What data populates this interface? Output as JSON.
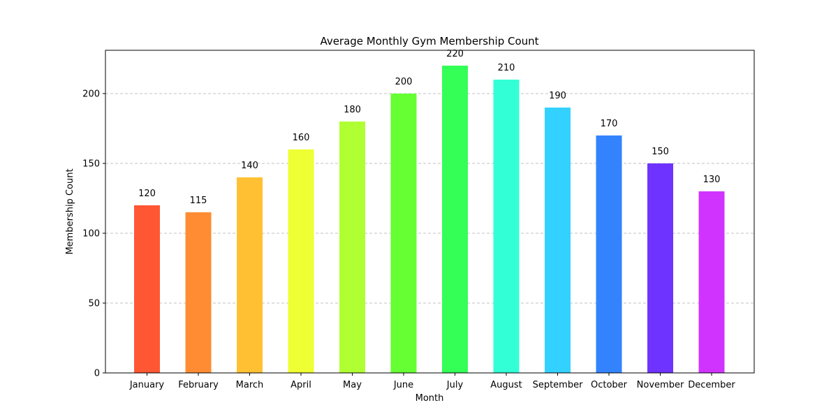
{
  "chart_data": {
    "type": "bar",
    "title": "Average Monthly Gym Membership Count",
    "xlabel": "Month",
    "ylabel": "Membership Count",
    "categories": [
      "January",
      "February",
      "March",
      "April",
      "May",
      "June",
      "July",
      "August",
      "September",
      "October",
      "November",
      "December"
    ],
    "values": [
      120,
      115,
      140,
      160,
      180,
      200,
      220,
      210,
      190,
      170,
      150,
      130
    ],
    "colors": [
      "#ff5733",
      "#ff8c33",
      "#ffc133",
      "#eeff33",
      "#b0ff33",
      "#66ff33",
      "#33ff57",
      "#33ffd6",
      "#33d1ff",
      "#3383ff",
      "#6e33ff",
      "#d133ff"
    ],
    "yticks": [
      0,
      50,
      100,
      150,
      200
    ],
    "ylim": [
      0,
      231
    ],
    "grid": "y-dashed",
    "data_labels": true
  }
}
